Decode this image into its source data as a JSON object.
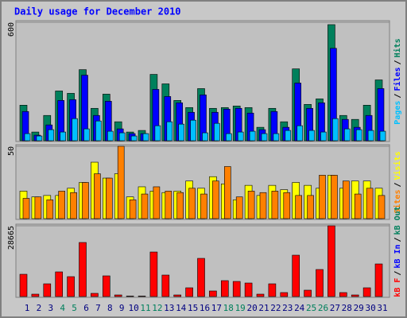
{
  "legend_separator": "/",
  "chart_data": [
    {
      "type": "bar",
      "title": "Daily usage for December 2010",
      "ylim": [
        0,
        600
      ],
      "yticks": [
        600
      ],
      "series": [
        {
          "name": "Hits",
          "color": "#00805c",
          "values": [
            180,
            44,
            128,
            252,
            240,
            360,
            164,
            236,
            96,
            44,
            52,
            336,
            288,
            204,
            168,
            264,
            164,
            168,
            176,
            168,
            68,
            164,
            96,
            364,
            184,
            212,
            588,
            128,
            108,
            180,
            308
          ]
        },
        {
          "name": "Files",
          "color": "#0000ff",
          "values": [
            148,
            28,
            80,
            204,
            208,
            332,
            128,
            200,
            60,
            36,
            36,
            260,
            224,
            192,
            144,
            232,
            144,
            160,
            164,
            140,
            56,
            148,
            68,
            292,
            164,
            192,
            468,
            108,
            68,
            128,
            264
          ]
        },
        {
          "name": "Pages",
          "color": "#00c0ff",
          "values": [
            36,
            24,
            56,
            44,
            112,
            60,
            100,
            48,
            40,
            24,
            36,
            76,
            96,
            84,
            104,
            40,
            88,
            36,
            44,
            48,
            36,
            36,
            52,
            76,
            52,
            44,
            112,
            60,
            56,
            52,
            48
          ]
        }
      ]
    },
    {
      "type": "bar",
      "ylim": [
        0,
        50
      ],
      "yticks": [
        50
      ],
      "series": [
        {
          "name": "Visits",
          "color": "#ffff00",
          "values": [
            19,
            15,
            16,
            16,
            21,
            25,
            39,
            28,
            31,
            15,
            22,
            19,
            18,
            19,
            26,
            21,
            29,
            24,
            13,
            23,
            16,
            23,
            20,
            25,
            23,
            21,
            30,
            21,
            26,
            26,
            21
          ]
        },
        {
          "name": "Sites",
          "color": "#ff8000",
          "values": [
            14,
            15,
            13,
            19,
            18,
            25,
            31,
            28,
            50,
            13,
            17,
            22,
            19,
            18,
            21,
            17,
            26,
            36,
            15,
            19,
            18,
            19,
            18,
            16,
            16,
            30,
            30,
            26,
            17,
            21,
            16
          ]
        }
      ]
    },
    {
      "type": "bar",
      "ylim": [
        0,
        28665
      ],
      "yticks": [
        28665
      ],
      "categories": [
        "1",
        "2",
        "3",
        "4",
        "5",
        "6",
        "7",
        "8",
        "9",
        "10",
        "11",
        "12",
        "13",
        "14",
        "15",
        "16",
        "17",
        "18",
        "19",
        "20",
        "21",
        "22",
        "23",
        "24",
        "25",
        "26",
        "27",
        "28",
        "29",
        "30",
        "31"
      ],
      "category_color": "#000080",
      "weekend_color": "#00805c",
      "weekend": [
        3,
        4,
        10,
        11,
        17,
        18,
        24,
        25
      ],
      "series": [
        {
          "name": "kB F",
          "color": "#ff0000",
          "values": [
            9018,
            966,
            5153,
            9984,
            8052,
            21900,
            1288,
            8374,
            644,
            200,
            200,
            18036,
            8696,
            644,
            3543,
            15460,
            2255,
            6441,
            6119,
            5475,
            966,
            5153,
            1610,
            16748,
            2577,
            10951,
            28665,
            1610,
            644,
            3543,
            13205
          ]
        }
      ],
      "extra_legend": [
        {
          "name": "kB In",
          "color": "#0000ff"
        },
        {
          "name": "kB Out",
          "color": "#00805c"
        }
      ]
    }
  ]
}
